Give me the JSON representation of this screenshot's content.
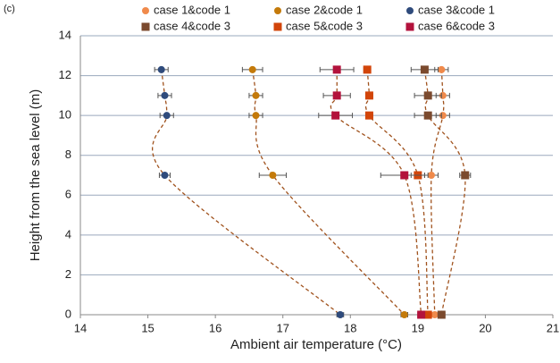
{
  "panel_label": "(c)",
  "chart_data": {
    "type": "scatter",
    "xlabel": "Ambient air temperature (°C)",
    "ylabel": "Height from the sea level (m)",
    "xlim": [
      14,
      21
    ],
    "xticks": [
      14,
      15,
      16,
      17,
      18,
      19,
      20,
      21
    ],
    "ylim": [
      0,
      14
    ],
    "yticks": [
      0,
      2,
      4,
      6,
      8,
      10,
      12,
      14
    ],
    "grid": true,
    "legend": "top",
    "series": [
      {
        "name": "case 1&code 1",
        "color": "#f08a4b",
        "marker": "circle",
        "x": [
          19.35,
          19.37,
          19.37,
          19.2,
          19.25
        ],
        "y": [
          12.3,
          11,
          10,
          7,
          0
        ],
        "xerr": [
          0.1,
          0.1,
          0.1,
          0.1,
          0.1
        ]
      },
      {
        "name": "case 2&code 1",
        "color": "#c47a0a",
        "marker": "circle",
        "x": [
          16.55,
          16.6,
          16.6,
          16.85,
          18.8
        ],
        "y": [
          12.3,
          11,
          10,
          7,
          0
        ],
        "xerr": [
          0.15,
          0.1,
          0.1,
          0.2,
          0.05
        ]
      },
      {
        "name": "case 3&code 1",
        "color": "#2f4b7c",
        "marker": "circle",
        "x": [
          15.2,
          15.25,
          15.28,
          15.25,
          17.85
        ],
        "y": [
          12.3,
          11,
          10,
          7,
          0
        ],
        "xerr": [
          0.1,
          0.1,
          0.1,
          0.08,
          0.05
        ]
      },
      {
        "name": "case 4&code 3",
        "color": "#7b4a2e",
        "marker": "square",
        "x": [
          19.1,
          19.15,
          19.15,
          19.7,
          19.35
        ],
        "y": [
          12.3,
          11,
          10,
          7,
          0
        ],
        "xerr": [
          0.2,
          0.2,
          0.2,
          0.08,
          0.05
        ]
      },
      {
        "name": "case 5&code 3",
        "color": "#d2450a",
        "marker": "square",
        "x": [
          18.25,
          18.28,
          18.28,
          19.0,
          19.15
        ],
        "y": [
          12.3,
          11,
          10,
          7,
          0
        ],
        "xerr": [
          0.05,
          0.05,
          0.05,
          0.1,
          0.05
        ]
      },
      {
        "name": "case 6&code 3",
        "color": "#b3123c",
        "marker": "square",
        "x": [
          17.8,
          17.8,
          17.78,
          18.8,
          19.05
        ],
        "y": [
          12.3,
          11,
          10,
          7,
          0
        ],
        "xerr": [
          0.25,
          0.2,
          0.25,
          0.35,
          0.05
        ]
      }
    ]
  }
}
